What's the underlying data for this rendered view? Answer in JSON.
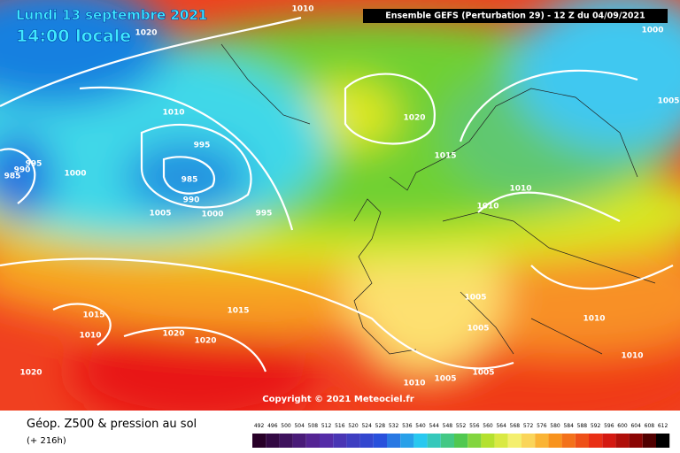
{
  "header": {
    "date": "Lundi 13 septembre 2021",
    "time": "14:00 locale",
    "run": "Ensemble GEFS  (Perturbation 29)  -  12 Z du 04/09/2021"
  },
  "map": {
    "isobar_labels": [
      1010,
      1020,
      1000,
      1010,
      1020,
      1005,
      995,
      995,
      990,
      985,
      1000,
      1015,
      985,
      990,
      1010,
      1010,
      1005,
      1000,
      995,
      1005,
      1015,
      1015,
      1010,
      1010,
      1020,
      1020,
      1005,
      1010,
      1020,
      1010,
      1005,
      1005
    ],
    "copyright": "Copyright © 2021 Meteociel.fr"
  },
  "legend": {
    "title": "Géop. Z500 & pression au sol",
    "subtitle": "(+ 216h)",
    "scale": [
      492,
      496,
      500,
      504,
      508,
      512,
      516,
      520,
      524,
      528,
      532,
      536,
      540,
      544,
      548,
      552,
      556,
      560,
      564,
      568,
      572,
      576,
      580,
      584,
      588,
      592,
      596,
      600,
      604,
      608,
      612
    ]
  }
}
